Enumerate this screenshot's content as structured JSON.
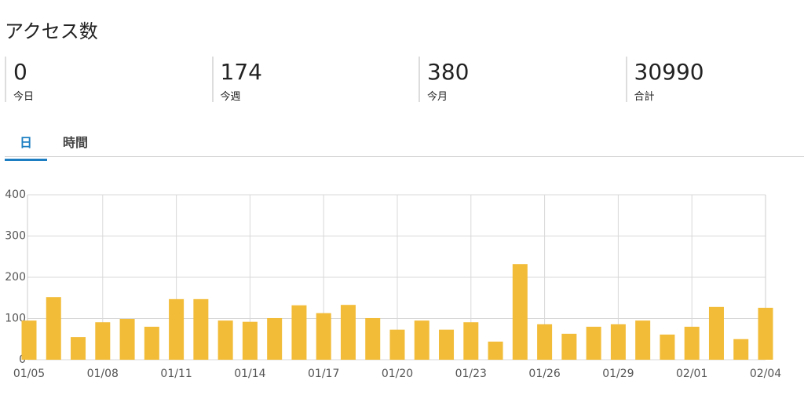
{
  "header": {
    "title": "アクセス数"
  },
  "stats": [
    {
      "value": 0,
      "label": "今日"
    },
    {
      "value": 174,
      "label": "今週"
    },
    {
      "value": 380,
      "label": "今月"
    },
    {
      "value": 30990,
      "label": "合計"
    }
  ],
  "tabs": [
    "日",
    "時間"
  ],
  "chart_data": {
    "type": "bar",
    "categories": [
      "01/05",
      null,
      null,
      "01/08",
      null,
      null,
      "01/11",
      null,
      null,
      "01/14",
      null,
      null,
      "01/17",
      null,
      null,
      "01/20",
      null,
      null,
      "01/23",
      null,
      null,
      "01/26",
      null,
      null,
      "01/29",
      null,
      null,
      "02/01",
      null,
      null,
      "02/04"
    ],
    "values": [
      95,
      152,
      55,
      91,
      99,
      80,
      147,
      147,
      95,
      92,
      101,
      132,
      113,
      133,
      101,
      73,
      95,
      73,
      91,
      44,
      232,
      86,
      63,
      80,
      86,
      95,
      61,
      80,
      128,
      50,
      126
    ],
    "color": "#f2bc38",
    "ylim": [
      0,
      400
    ],
    "yticks": [
      0,
      100,
      200,
      300,
      400
    ],
    "grid": true
  }
}
